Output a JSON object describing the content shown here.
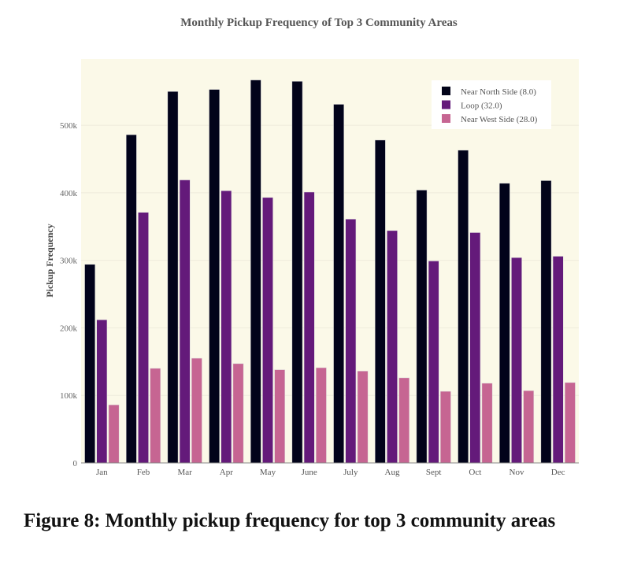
{
  "chart_data": {
    "type": "bar",
    "title": "Monthly Pickup Frequency of Top 3 Community Areas",
    "xlabel": "",
    "ylabel": "Pickup Frequency",
    "categories": [
      "Jan",
      "Feb",
      "Mar",
      "Apr",
      "May",
      "June",
      "July",
      "Aug",
      "Sept",
      "Oct",
      "Nov",
      "Dec"
    ],
    "series": [
      {
        "name": "Near North Side (8.0)",
        "color": "#02031a",
        "values": [
          294000,
          486000,
          550000,
          553000,
          567000,
          565000,
          531000,
          478000,
          404000,
          463000,
          414000,
          418000
        ]
      },
      {
        "name": "Loop (32.0)",
        "color": "#641a7a",
        "values": [
          212000,
          371000,
          419000,
          403000,
          393000,
          401000,
          361000,
          344000,
          299000,
          341000,
          304000,
          306000
        ]
      },
      {
        "name": "Near West Side (28.0)",
        "color": "#c66592",
        "values": [
          86000,
          140000,
          155000,
          147000,
          138000,
          141000,
          136000,
          126000,
          106000,
          118000,
          107000,
          119000
        ]
      }
    ],
    "ylim": [
      0,
      598000
    ],
    "yticks": [
      0,
      100000,
      200000,
      300000,
      400000,
      500000
    ],
    "ytick_labels": [
      "0",
      "100k",
      "200k",
      "300k",
      "400k",
      "500k"
    ],
    "grid": true,
    "legend_position": "top-right",
    "plot_background": "#fbf9e8"
  },
  "caption": "Figure 8: Monthly pickup frequency for top 3 community areas"
}
